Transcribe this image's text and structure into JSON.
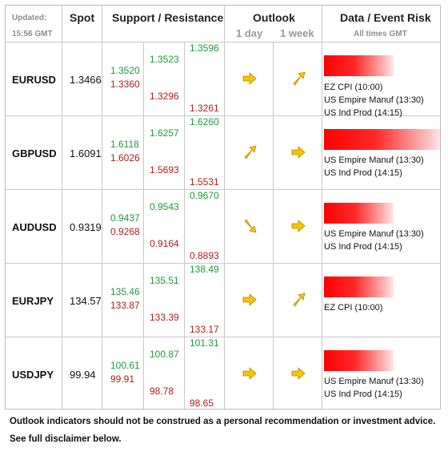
{
  "header": {
    "updated_label": "Updated:",
    "updated_time": "15:56 GMT",
    "spot": "Spot",
    "support_resistance": "Support / Resistance",
    "outlook": "Outlook",
    "outlook_1day": "1 day",
    "outlook_1week": "1 week",
    "event_risk": "Data / Event Risk",
    "all_times": "All times GMT"
  },
  "colors": {
    "support": "#1f9a3a",
    "resistance": "#b01d1d",
    "arrow": "#f6c400",
    "risk_bar": "#ff0000"
  },
  "rows": [
    {
      "pair": "EURUSD",
      "spot": "1.3466",
      "r1": "1.3520",
      "s1": "1.3360",
      "r2": "1.3523",
      "s2": "1.3296",
      "r3": "1.3596",
      "s3": "1.3261",
      "day_icon": "arrow-right-icon",
      "week_icon": "arrow-up-right-icon",
      "risk_level": 0.6,
      "events": [
        "EZ CPI (10:00)",
        "US Empire Manuf (13:30)",
        "US Ind Prod (14:15)"
      ]
    },
    {
      "pair": "GBPUSD",
      "spot": "1.6091",
      "r1": "1.6118",
      "s1": "1.6026",
      "r2": "1.6257",
      "s2": "1.5693",
      "r3": "1.6260",
      "s3": "1.5531",
      "day_icon": "arrow-up-right-icon",
      "week_icon": "arrow-right-icon",
      "risk_level": 1.0,
      "events": [
        "US Empire Manuf (13:30)",
        "US Ind Prod (14:15)"
      ]
    },
    {
      "pair": "AUDUSD",
      "spot": "0.9319",
      "r1": "0.9437",
      "s1": "0.9268",
      "r2": "0.9543",
      "s2": "0.9164",
      "r3": "0.9670",
      "s3": "0.8893",
      "day_icon": "arrow-down-right-icon",
      "week_icon": "arrow-right-icon",
      "risk_level": 0.6,
      "events": [
        "US Empire Manuf (13:30)",
        "US Ind Prod (14:15)"
      ]
    },
    {
      "pair": "EURJPY",
      "spot": "134.57",
      "r1": "135.46",
      "s1": "133.87",
      "r2": "135.51",
      "s2": "133.39",
      "r3": "138.49",
      "s3": "133.17",
      "day_icon": "arrow-right-icon",
      "week_icon": "arrow-up-right-icon",
      "risk_level": 0.6,
      "events": [
        "EZ CPI (10:00)"
      ]
    },
    {
      "pair": "USDJPY",
      "spot": "99.94",
      "r1": "100.61",
      "s1": "99.91",
      "r2": "100.87",
      "s2": "98.78",
      "r3": "101.31",
      "s3": "98.65",
      "day_icon": "arrow-right-icon",
      "week_icon": "arrow-right-icon",
      "risk_level": 0.6,
      "events": [
        "US Empire Manuf (13:30)",
        "US Ind Prod (14:15)"
      ]
    }
  ],
  "footer": {
    "line1": "Outlook indicators should not be construed as a personal recommendation or investment advice.",
    "line2": "See full disclaimer below."
  }
}
